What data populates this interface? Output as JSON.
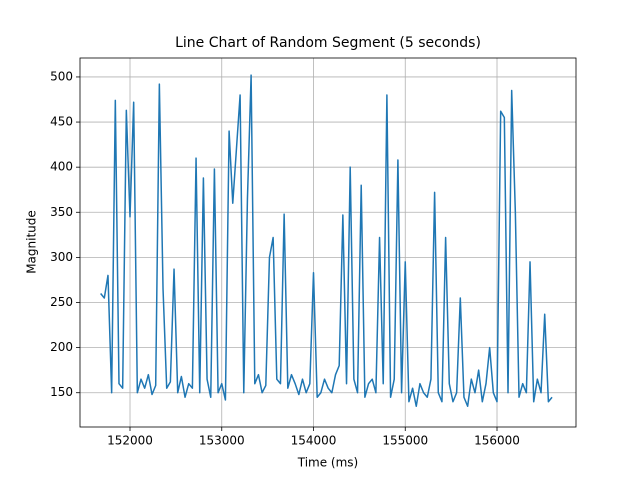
{
  "chart_data": {
    "type": "line",
    "title": "Line Chart of Random Segment (5 seconds)",
    "x_label": "Time (ms)",
    "y_label": "Magnitude",
    "x": [
      151680,
      151720,
      151760,
      151800,
      151840,
      151880,
      151920,
      151960,
      152000,
      152040,
      152080,
      152120,
      152160,
      152200,
      152240,
      152280,
      152320,
      152360,
      152400,
      152440,
      152480,
      152520,
      152560,
      152600,
      152640,
      152680,
      152720,
      152760,
      152800,
      152840,
      152880,
      152920,
      152960,
      153000,
      153040,
      153080,
      153120,
      153160,
      153200,
      153240,
      153280,
      153320,
      153360,
      153400,
      153440,
      153480,
      153520,
      153560,
      153600,
      153640,
      153680,
      153720,
      153760,
      153800,
      153840,
      153880,
      153920,
      153960,
      154000,
      154040,
      154080,
      154120,
      154160,
      154200,
      154240,
      154280,
      154320,
      154360,
      154400,
      154440,
      154480,
      154520,
      154560,
      154600,
      154640,
      154680,
      154720,
      154760,
      154800,
      154840,
      154880,
      154920,
      154960,
      155000,
      155040,
      155080,
      155120,
      155160,
      155200,
      155240,
      155280,
      155320,
      155360,
      155400,
      155440,
      155480,
      155520,
      155560,
      155600,
      155640,
      155680,
      155720,
      155760,
      155800,
      155840,
      155880,
      155920,
      155960,
      156000,
      156040,
      156080,
      156120,
      156160,
      156200,
      156240,
      156280,
      156320,
      156360,
      156400,
      156440,
      156480,
      156520,
      156560,
      156600
    ],
    "values": [
      260,
      255,
      280,
      150,
      474,
      160,
      155,
      463,
      345,
      472,
      150,
      165,
      155,
      170,
      148,
      158,
      492,
      265,
      155,
      162,
      287,
      150,
      168,
      145,
      160,
      155,
      410,
      150,
      388,
      165,
      145,
      398,
      150,
      160,
      142,
      440,
      360,
      420,
      480,
      150,
      365,
      502,
      160,
      170,
      150,
      158,
      300,
      322,
      165,
      160,
      348,
      155,
      170,
      160,
      148,
      165,
      150,
      160,
      283,
      145,
      150,
      165,
      155,
      150,
      170,
      180,
      347,
      160,
      400,
      165,
      150,
      380,
      145,
      160,
      165,
      150,
      322,
      160,
      480,
      145,
      165,
      408,
      150,
      295,
      140,
      155,
      135,
      160,
      150,
      145,
      165,
      372,
      150,
      140,
      322,
      160,
      140,
      150,
      255,
      145,
      135,
      165,
      150,
      175,
      140,
      160,
      200,
      150,
      140,
      462,
      455,
      150,
      485,
      350,
      145,
      160,
      150,
      295,
      140,
      165,
      150,
      237,
      140,
      145
    ],
    "color": "#1f77b4",
    "xlim": [
      151455,
      156861
    ],
    "ylim": [
      112,
      521
    ],
    "xticks": [
      152000,
      153000,
      154000,
      155000,
      156000
    ],
    "yticks": [
      150,
      200,
      250,
      300,
      350,
      400,
      450,
      500
    ],
    "grid": true
  }
}
